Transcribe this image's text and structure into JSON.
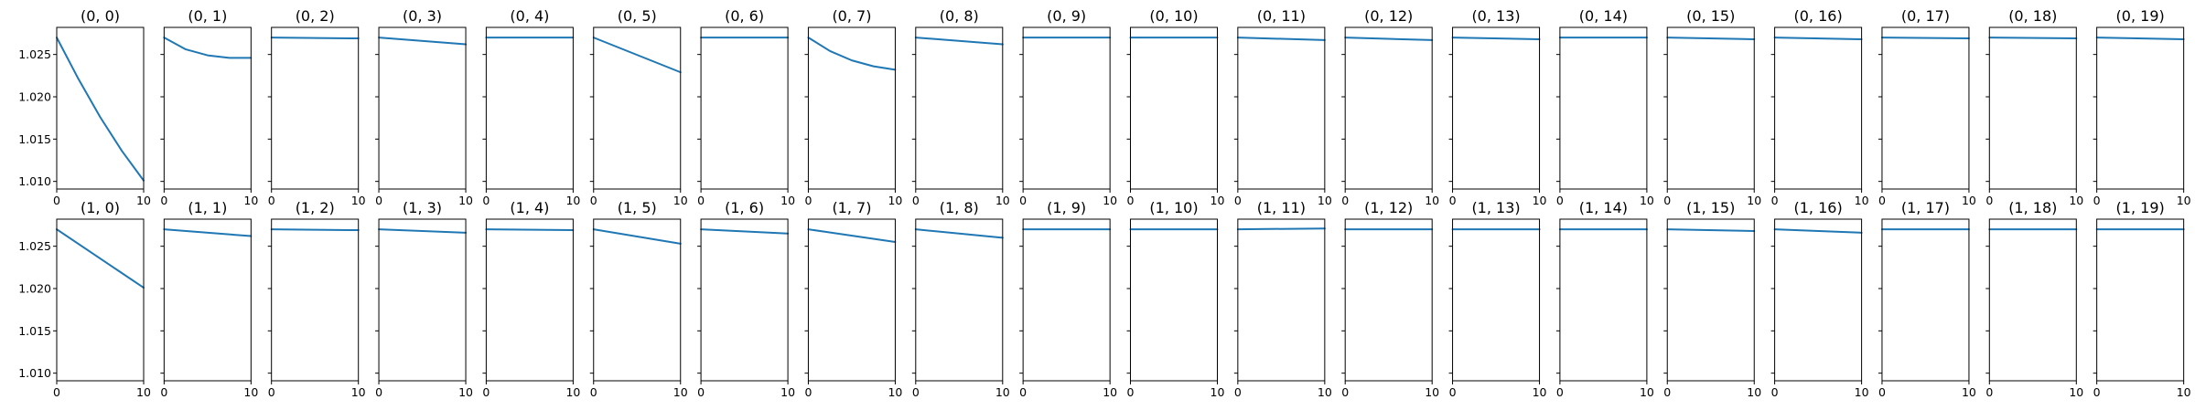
{
  "chart_data": {
    "type": "line",
    "layout": {
      "rows": 2,
      "cols": 20
    },
    "series_color": "#1f77b4",
    "x_domain": [
      0,
      10
    ],
    "xticks": [
      0,
      10
    ],
    "ylim": [
      1.0091,
      1.0282
    ],
    "yticks": [
      1.01,
      1.015,
      1.02,
      1.025
    ],
    "ytick_labels": [
      "1.010",
      "1.015",
      "1.020",
      "1.025"
    ],
    "grid": false,
    "panels": [
      {
        "title": "(0, 0)",
        "x": [
          0,
          2.5,
          5,
          7.5,
          10
        ],
        "y": [
          1.027,
          1.0221,
          1.0176,
          1.0136,
          1.0101
        ]
      },
      {
        "title": "(0, 1)",
        "x": [
          0,
          2.5,
          5,
          7.5,
          10
        ],
        "y": [
          1.027,
          1.0256,
          1.0249,
          1.0246,
          1.0246
        ]
      },
      {
        "title": "(0, 2)",
        "x": [
          0,
          10
        ],
        "y": [
          1.027,
          1.0269
        ]
      },
      {
        "title": "(0, 3)",
        "x": [
          0,
          10
        ],
        "y": [
          1.027,
          1.0262
        ]
      },
      {
        "title": "(0, 4)",
        "x": [
          0,
          10
        ],
        "y": [
          1.027,
          1.027
        ]
      },
      {
        "title": "(0, 5)",
        "x": [
          0,
          10
        ],
        "y": [
          1.027,
          1.0229
        ]
      },
      {
        "title": "(0, 6)",
        "x": [
          0,
          10
        ],
        "y": [
          1.027,
          1.027
        ]
      },
      {
        "title": "(0, 7)",
        "x": [
          0,
          2.5,
          5,
          7.5,
          10
        ],
        "y": [
          1.027,
          1.0254,
          1.0243,
          1.0236,
          1.0232
        ]
      },
      {
        "title": "(0, 8)",
        "x": [
          0,
          10
        ],
        "y": [
          1.027,
          1.0262
        ]
      },
      {
        "title": "(0, 9)",
        "x": [
          0,
          10
        ],
        "y": [
          1.027,
          1.027
        ]
      },
      {
        "title": "(0, 10)",
        "x": [
          0,
          10
        ],
        "y": [
          1.027,
          1.027
        ]
      },
      {
        "title": "(0, 11)",
        "x": [
          0,
          10
        ],
        "y": [
          1.027,
          1.0267
        ]
      },
      {
        "title": "(0, 12)",
        "x": [
          0,
          10
        ],
        "y": [
          1.027,
          1.0267
        ]
      },
      {
        "title": "(0, 13)",
        "x": [
          0,
          10
        ],
        "y": [
          1.027,
          1.0268
        ]
      },
      {
        "title": "(0, 14)",
        "x": [
          0,
          10
        ],
        "y": [
          1.027,
          1.027
        ]
      },
      {
        "title": "(0, 15)",
        "x": [
          0,
          10
        ],
        "y": [
          1.027,
          1.0268
        ]
      },
      {
        "title": "(0, 16)",
        "x": [
          0,
          10
        ],
        "y": [
          1.027,
          1.0268
        ]
      },
      {
        "title": "(0, 17)",
        "x": [
          0,
          10
        ],
        "y": [
          1.027,
          1.0269
        ]
      },
      {
        "title": "(0, 18)",
        "x": [
          0,
          10
        ],
        "y": [
          1.027,
          1.0269
        ]
      },
      {
        "title": "(0, 19)",
        "x": [
          0,
          10
        ],
        "y": [
          1.027,
          1.0268
        ]
      },
      {
        "title": "(1, 0)",
        "x": [
          0,
          10
        ],
        "y": [
          1.027,
          1.0201
        ]
      },
      {
        "title": "(1, 1)",
        "x": [
          0,
          10
        ],
        "y": [
          1.027,
          1.0262
        ]
      },
      {
        "title": "(1, 2)",
        "x": [
          0,
          10
        ],
        "y": [
          1.027,
          1.0269
        ]
      },
      {
        "title": "(1, 3)",
        "x": [
          0,
          10
        ],
        "y": [
          1.027,
          1.0266
        ]
      },
      {
        "title": "(1, 4)",
        "x": [
          0,
          10
        ],
        "y": [
          1.027,
          1.0269
        ]
      },
      {
        "title": "(1, 5)",
        "x": [
          0,
          10
        ],
        "y": [
          1.027,
          1.0253
        ]
      },
      {
        "title": "(1, 6)",
        "x": [
          0,
          10
        ],
        "y": [
          1.027,
          1.0265
        ]
      },
      {
        "title": "(1, 7)",
        "x": [
          0,
          10
        ],
        "y": [
          1.027,
          1.0255
        ]
      },
      {
        "title": "(1, 8)",
        "x": [
          0,
          10
        ],
        "y": [
          1.027,
          1.026
        ]
      },
      {
        "title": "(1, 9)",
        "x": [
          0,
          10
        ],
        "y": [
          1.027,
          1.027
        ]
      },
      {
        "title": "(1, 10)",
        "x": [
          0,
          10
        ],
        "y": [
          1.027,
          1.027
        ]
      },
      {
        "title": "(1, 11)",
        "x": [
          0,
          10
        ],
        "y": [
          1.027,
          1.0271
        ]
      },
      {
        "title": "(1, 12)",
        "x": [
          0,
          10
        ],
        "y": [
          1.027,
          1.027
        ]
      },
      {
        "title": "(1, 13)",
        "x": [
          0,
          10
        ],
        "y": [
          1.027,
          1.027
        ]
      },
      {
        "title": "(1, 14)",
        "x": [
          0,
          10
        ],
        "y": [
          1.027,
          1.027
        ]
      },
      {
        "title": "(1, 15)",
        "x": [
          0,
          10
        ],
        "y": [
          1.027,
          1.0268
        ]
      },
      {
        "title": "(1, 16)",
        "x": [
          0,
          10
        ],
        "y": [
          1.027,
          1.0266
        ]
      },
      {
        "title": "(1, 17)",
        "x": [
          0,
          10
        ],
        "y": [
          1.027,
          1.027
        ]
      },
      {
        "title": "(1, 18)",
        "x": [
          0,
          10
        ],
        "y": [
          1.027,
          1.027
        ]
      },
      {
        "title": "(1, 19)",
        "x": [
          0,
          10
        ],
        "y": [
          1.027,
          1.027
        ]
      }
    ]
  }
}
